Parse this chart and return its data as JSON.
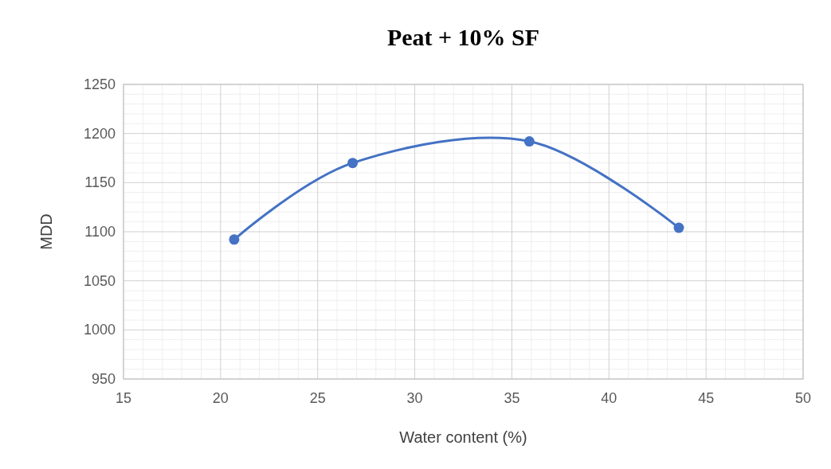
{
  "chart_data": {
    "type": "line",
    "title": "Peat + 10% SF",
    "xlabel": "Water content (%)",
    "ylabel": "MDD",
    "series": [
      {
        "x": [
          20.7,
          26.8,
          35.9,
          43.6
        ],
        "values": [
          1092,
          1170,
          1192,
          1104
        ],
        "color": "#4472c4"
      }
    ],
    "xlim": [
      15,
      50
    ],
    "xticks": [
      15,
      20,
      25,
      30,
      35,
      40,
      45,
      50
    ],
    "ylim": [
      950,
      1250
    ],
    "yticks": [
      950,
      1000,
      1050,
      1100,
      1150,
      1200,
      1250
    ],
    "grid": true,
    "marker": "circle",
    "line_style": "solid"
  }
}
